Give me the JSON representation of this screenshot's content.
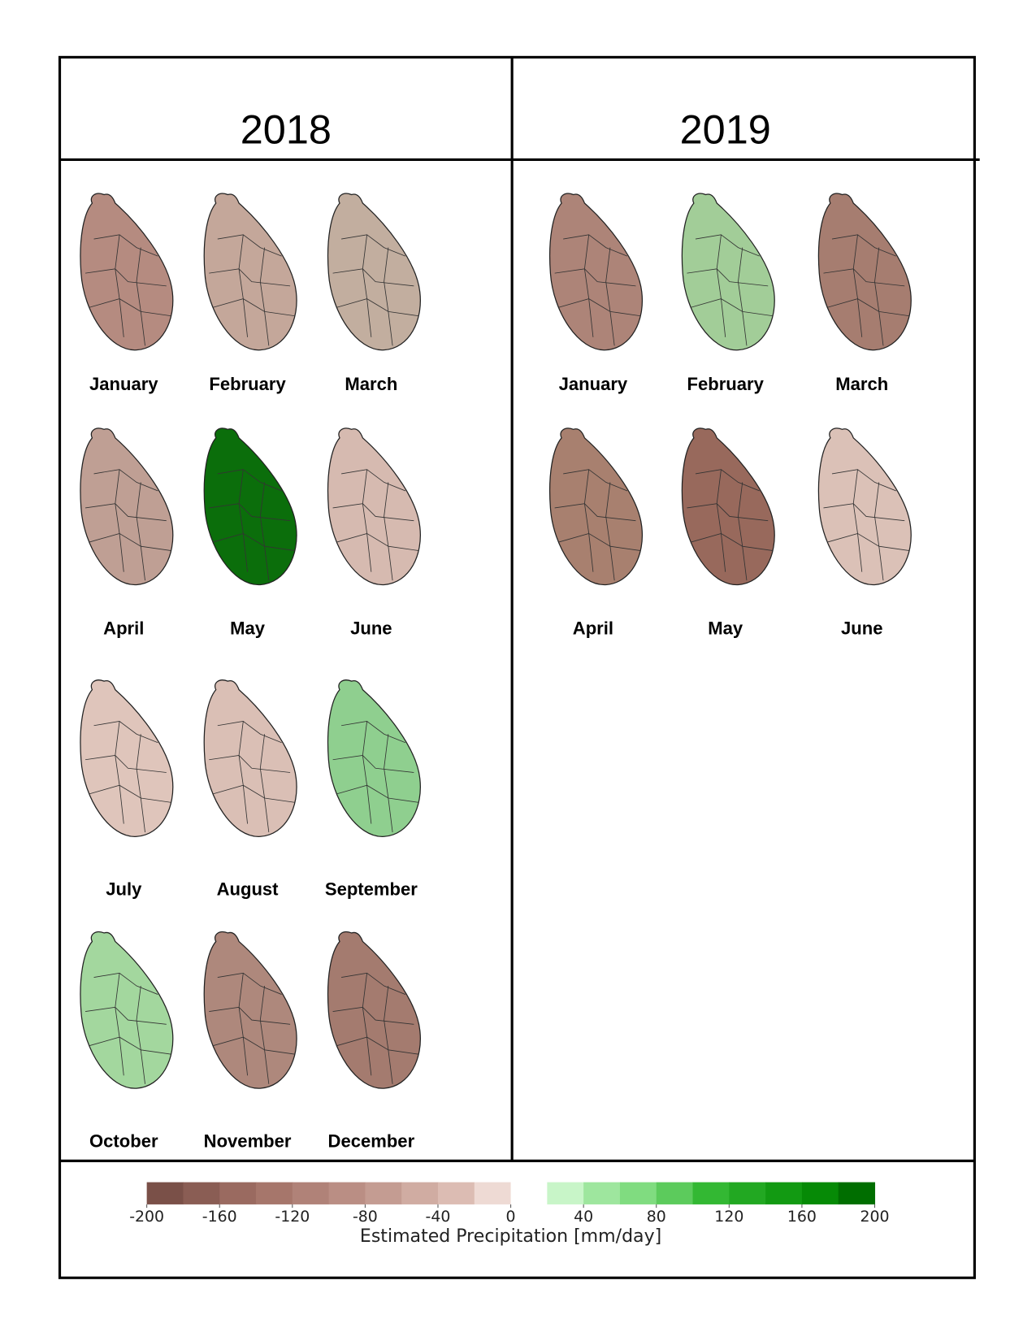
{
  "panels": [
    {
      "year": "2018",
      "maps": [
        {
          "label": "January",
          "color": "#b58b80"
        },
        {
          "label": "February",
          "color": "#c4a79a"
        },
        {
          "label": "March",
          "color": "#c2ae9f"
        },
        {
          "label": "April",
          "color": "#bf9f94"
        },
        {
          "label": "May",
          "color": "#0b6e0b"
        },
        {
          "label": "June",
          "color": "#d6bab0"
        },
        {
          "label": "July",
          "color": "#dfc5bb"
        },
        {
          "label": "August",
          "color": "#dabfb5"
        },
        {
          "label": "September",
          "color": "#8fcf8f"
        },
        {
          "label": "October",
          "color": "#a3d79e"
        },
        {
          "label": "November",
          "color": "#ae887c"
        },
        {
          "label": "December",
          "color": "#a47b6f"
        }
      ]
    },
    {
      "year": "2019",
      "maps": [
        {
          "label": "January",
          "color": "#ad8478"
        },
        {
          "label": "February",
          "color": "#a2cd98"
        },
        {
          "label": "March",
          "color": "#a67d70"
        },
        {
          "label": "April",
          "color": "#a8806f"
        },
        {
          "label": "May",
          "color": "#98695c"
        },
        {
          "label": "June",
          "color": "#dbc1b7"
        }
      ]
    }
  ],
  "colorbar": {
    "label": "Estimated Precipitation [mm/day]",
    "lim": [
      -200,
      200
    ],
    "ticks": [
      -200,
      -160,
      -120,
      -80,
      -40,
      0,
      40,
      80,
      120,
      160,
      200
    ],
    "colors": [
      "#7a5048",
      "#8a5d54",
      "#9a6a60",
      "#a6766b",
      "#b08278",
      "#ba8e84",
      "#c49c92",
      "#d0aca2",
      "#dcbcb3",
      "#eedad4",
      "#ffffff",
      "#c8f5c8",
      "#9ee69e",
      "#80dc80",
      "#5ccb5c",
      "#33b833",
      "#22a822",
      "#129a12",
      "#068a06",
      "#006e00"
    ]
  }
}
